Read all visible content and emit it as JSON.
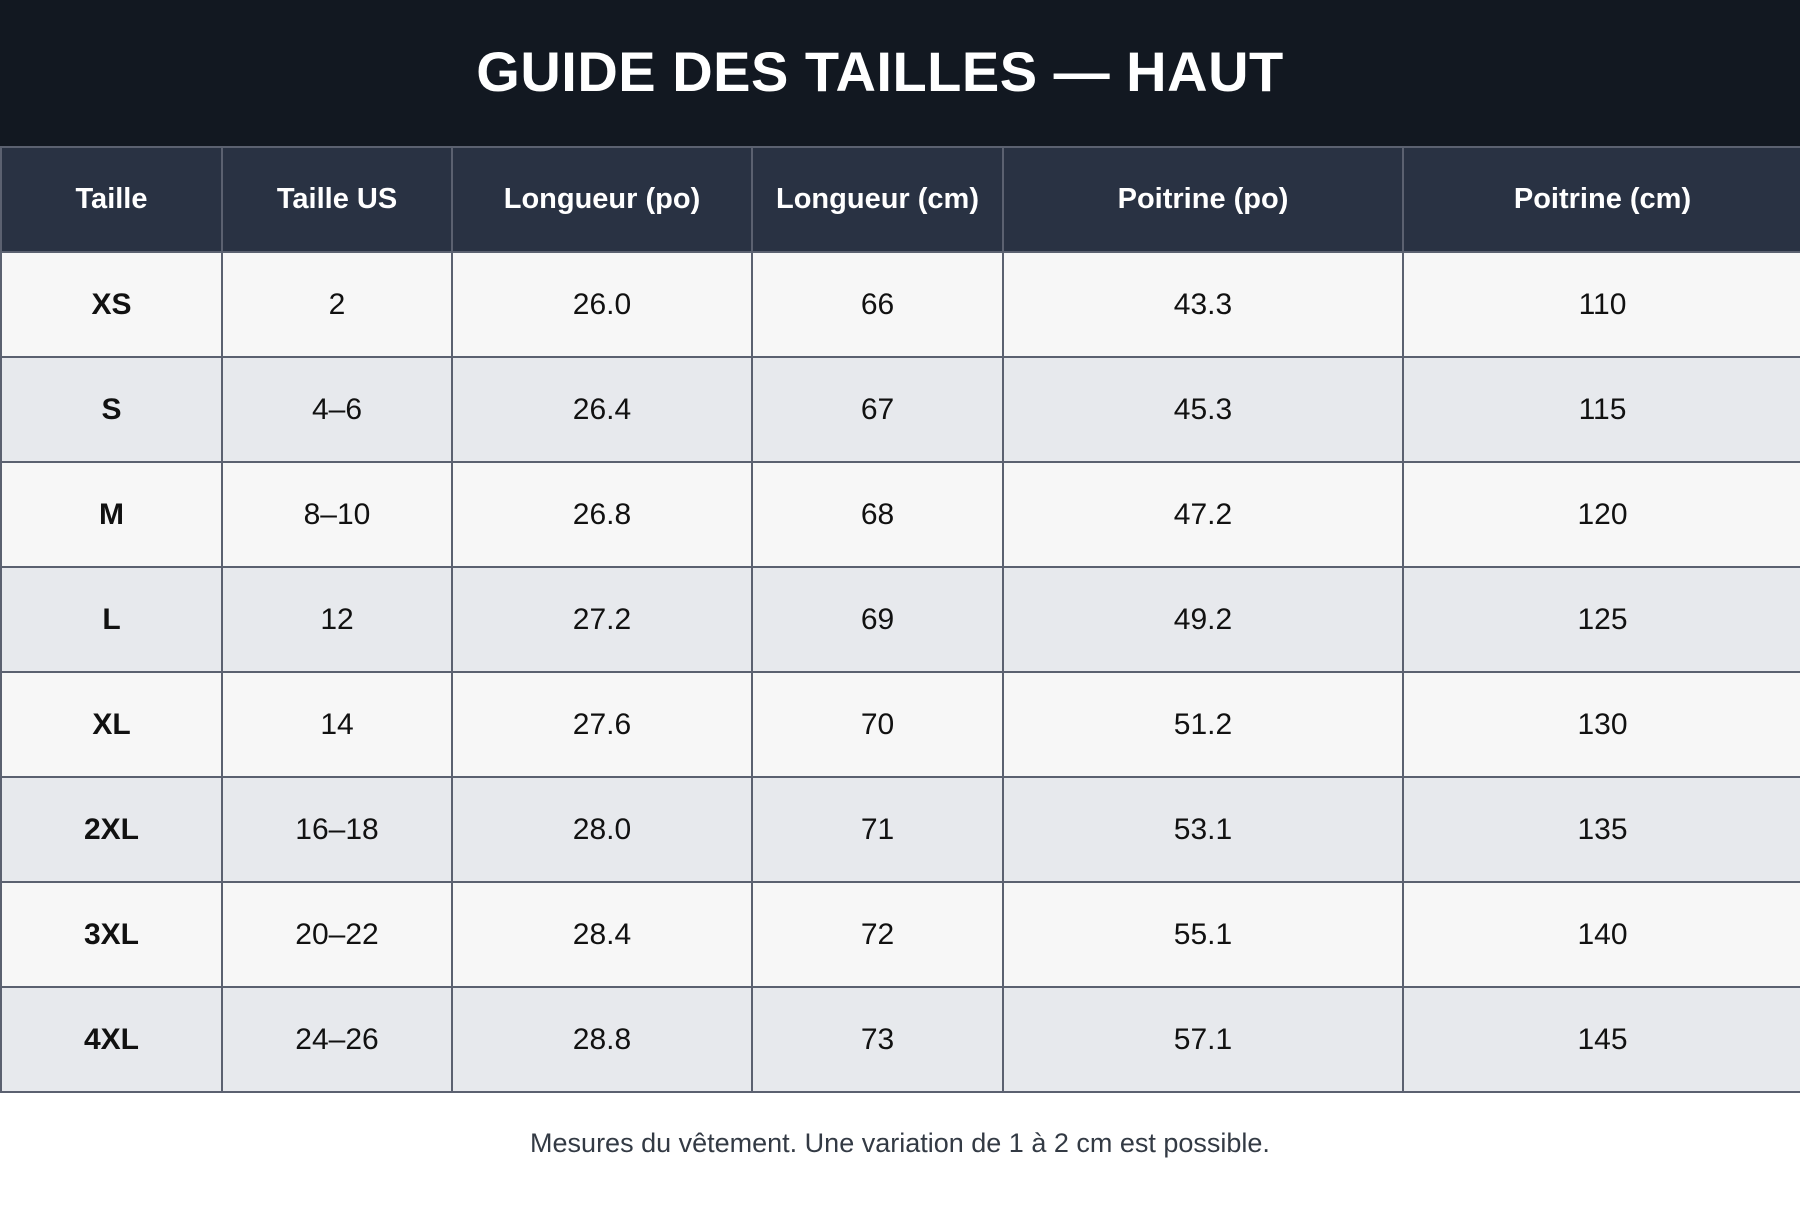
{
  "title": "GUIDE DES TAILLES — HAUT",
  "columns": [
    "Taille",
    "Taille US",
    "Longueur (po)",
    "Longueur (cm)",
    "Poitrine (po)",
    "Poitrine (cm)"
  ],
  "rows": [
    [
      "XS",
      "2",
      "26.0",
      "66",
      "43.3",
      "110"
    ],
    [
      "S",
      "4–6",
      "26.4",
      "67",
      "45.3",
      "115"
    ],
    [
      "M",
      "8–10",
      "26.8",
      "68",
      "47.2",
      "120"
    ],
    [
      "L",
      "12",
      "27.2",
      "69",
      "49.2",
      "125"
    ],
    [
      "XL",
      "14",
      "27.6",
      "70",
      "51.2",
      "130"
    ],
    [
      "2XL",
      "16–18",
      "28.0",
      "71",
      "53.1",
      "135"
    ],
    [
      "3XL",
      "20–22",
      "28.4",
      "72",
      "55.1",
      "140"
    ],
    [
      "4XL",
      "24–26",
      "28.8",
      "73",
      "57.1",
      "145"
    ]
  ],
  "note": "Mesures du vêtement. Une variation de 1 à 2 cm est possible.",
  "colors": {
    "title_background": "#121821",
    "header_background": "#293243",
    "row_light": "#f7f7f7",
    "row_alt": "#e7e9ed",
    "border": "#5b6170"
  }
}
